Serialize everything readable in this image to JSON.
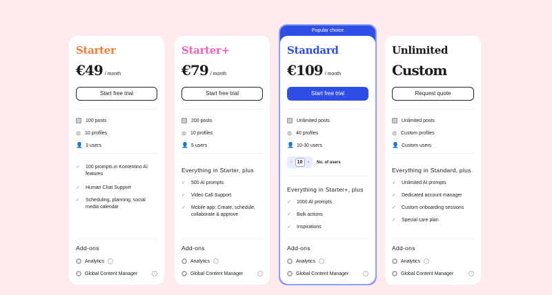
{
  "colors": {
    "background": "#fdebee",
    "starter": "#f27d3a",
    "starter_plus": "#f062b7",
    "standard": "#2e4ee6",
    "unlimited": "#1b1b1b"
  },
  "plans": [
    {
      "name": "Starter",
      "price": "€49",
      "period": "/ month",
      "cta": "Start free trial",
      "limits": [
        "100 posts",
        "10 profiles",
        "3 users"
      ],
      "features": [
        "100 prompts in Kontentino AI features",
        "Human Chat Support",
        "Scheduling, planning, social media calendar"
      ]
    },
    {
      "name": "Starter+",
      "price": "€79",
      "period": "/ month",
      "cta": "Start free trial",
      "limits": [
        "200 posts",
        "10 profiles",
        "5 users"
      ],
      "features_heading": "Everything in Starter, plus",
      "features": [
        "500 AI prompts",
        "Video Call Support",
        "Mobile app: Create, schedule, collaborate & approve"
      ]
    },
    {
      "name": "Standard",
      "badge": "Popular choice",
      "price": "€109",
      "period": "/ month",
      "cta": "Start free trial",
      "limits": [
        "Unlimited posts",
        "40 profiles",
        "10-30 users"
      ],
      "stepper": {
        "value": "10",
        "minus": "−",
        "plus": "+",
        "label": "No. of users"
      },
      "features_heading": "Everything in Starter+, plus",
      "features": [
        "1000 AI prompts",
        "Bulk actions",
        "Inspirations"
      ]
    },
    {
      "name": "Unlimited",
      "price": "Custom",
      "cta": "Request quote",
      "limits": [
        "Unlimited posts",
        "Custom profiles",
        "Custom users"
      ],
      "features_heading": "Everything in Standard, plus",
      "features": [
        "Unlimited AI prompts",
        "Dedicated account manager",
        "Custom onboarding sessions",
        "Special care plan"
      ]
    }
  ],
  "addons": {
    "heading": "Add-ons",
    "items": [
      "Analytics",
      "Global Content Manager"
    ],
    "info_icon": "i"
  }
}
